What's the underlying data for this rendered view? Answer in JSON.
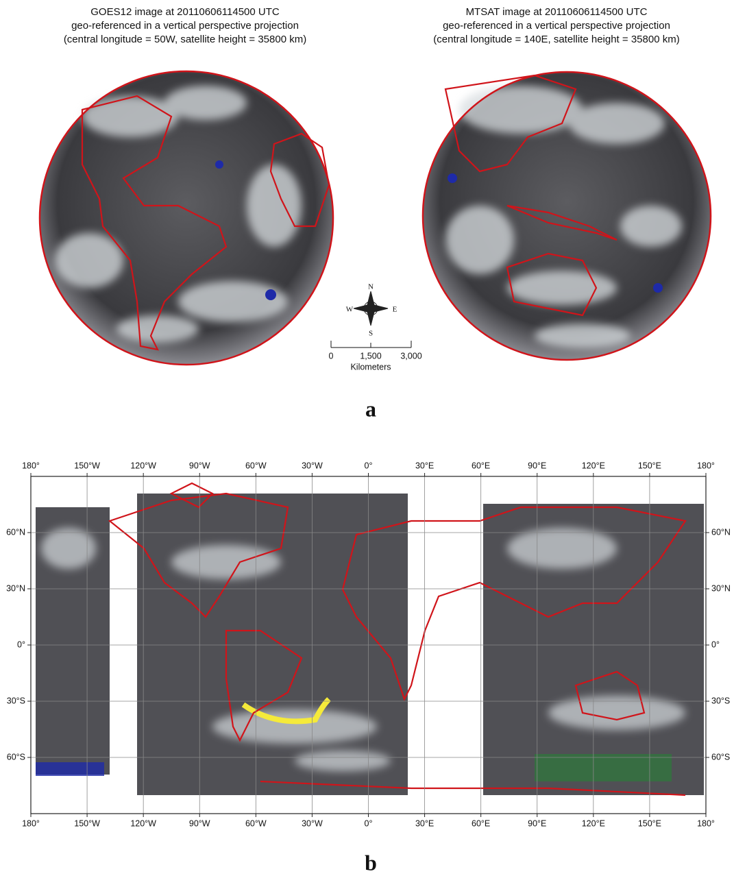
{
  "panel_a": {
    "left_title": [
      "GOES12 image at 20110606114500 UTC",
      "geo-referenced in a vertical perspective projection",
      "(central longitude = 50W, satellite height = 35800 km)"
    ],
    "right_title": [
      "MTSAT image at 20110606114500 UTC",
      "geo-referenced in a vertical perspective projection",
      "(central longitude = 140E, satellite height = 35800 km)"
    ],
    "compass": {
      "n": "N",
      "s": "S",
      "e": "E",
      "w": "W"
    },
    "scale": {
      "ticks": [
        "0",
        "1,500",
        "3,000"
      ],
      "unit": "Kilometers"
    },
    "label": "a"
  },
  "panel_b": {
    "lon_labels": [
      "180°",
      "150°W",
      "120°W",
      "90°W",
      "60°W",
      "30°W",
      "0°",
      "30°E",
      "60°E",
      "90°E",
      "120°E",
      "150°E",
      "180°"
    ],
    "lat_labels": [
      "60°N",
      "30°N",
      "0°",
      "30°S",
      "60°S"
    ],
    "label": "b"
  }
}
